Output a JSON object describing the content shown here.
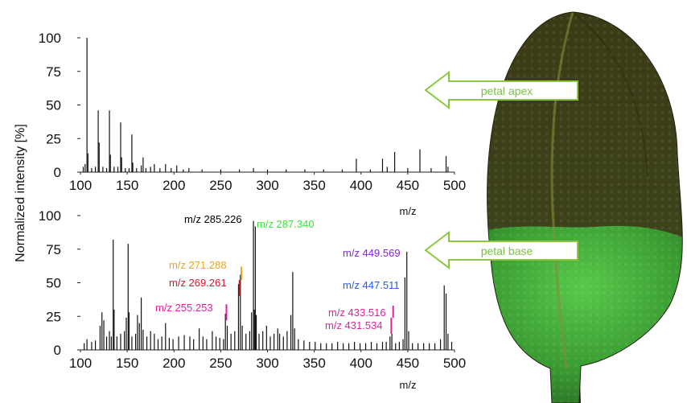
{
  "ylabel": "Normalized intensity [%]",
  "xlabel": "m/z",
  "arrows": {
    "apex": "petal apex",
    "base": "petal base"
  },
  "colors": {
    "spectrum": "#000000",
    "arrow_fill": "#ffffff",
    "arrow_stroke": "#8cc63f",
    "arrow_text": "#7ac043",
    "petal_dark": "#3a3d18",
    "petal_green": "#3fa532"
  },
  "chart_data": [
    {
      "type": "bar",
      "name": "petal apex spectrum",
      "xlim": [
        100,
        500
      ],
      "ylim": [
        0,
        100
      ],
      "xticks": [
        100,
        150,
        200,
        250,
        300,
        350,
        400,
        450,
        500
      ],
      "yticks": [
        0,
        25,
        50,
        75,
        100
      ],
      "xlabel": "m/z",
      "peaks": [
        {
          "x": 103,
          "y": 4
        },
        {
          "x": 105,
          "y": 6
        },
        {
          "x": 107,
          "y": 100
        },
        {
          "x": 108,
          "y": 14
        },
        {
          "x": 112,
          "y": 3
        },
        {
          "x": 116,
          "y": 4
        },
        {
          "x": 119,
          "y": 46
        },
        {
          "x": 120,
          "y": 22
        },
        {
          "x": 124,
          "y": 4
        },
        {
          "x": 128,
          "y": 3
        },
        {
          "x": 131,
          "y": 46
        },
        {
          "x": 132,
          "y": 13
        },
        {
          "x": 136,
          "y": 4
        },
        {
          "x": 140,
          "y": 4
        },
        {
          "x": 143,
          "y": 37
        },
        {
          "x": 144,
          "y": 11
        },
        {
          "x": 148,
          "y": 3
        },
        {
          "x": 152,
          "y": 3
        },
        {
          "x": 155,
          "y": 28
        },
        {
          "x": 156,
          "y": 7
        },
        {
          "x": 160,
          "y": 3
        },
        {
          "x": 165,
          "y": 5
        },
        {
          "x": 167,
          "y": 11
        },
        {
          "x": 170,
          "y": 3
        },
        {
          "x": 175,
          "y": 4
        },
        {
          "x": 179,
          "y": 6
        },
        {
          "x": 185,
          "y": 3
        },
        {
          "x": 191,
          "y": 6
        },
        {
          "x": 197,
          "y": 3
        },
        {
          "x": 203,
          "y": 5
        },
        {
          "x": 210,
          "y": 2
        },
        {
          "x": 216,
          "y": 3
        },
        {
          "x": 230,
          "y": 2
        },
        {
          "x": 250,
          "y": 2
        },
        {
          "x": 270,
          "y": 2
        },
        {
          "x": 285,
          "y": 3
        },
        {
          "x": 300,
          "y": 2
        },
        {
          "x": 320,
          "y": 2
        },
        {
          "x": 340,
          "y": 2
        },
        {
          "x": 360,
          "y": 2
        },
        {
          "x": 380,
          "y": 2
        },
        {
          "x": 395,
          "y": 10
        },
        {
          "x": 410,
          "y": 2
        },
        {
          "x": 423,
          "y": 10
        },
        {
          "x": 428,
          "y": 4
        },
        {
          "x": 436,
          "y": 15
        },
        {
          "x": 450,
          "y": 3
        },
        {
          "x": 463,
          "y": 17
        },
        {
          "x": 475,
          "y": 3
        },
        {
          "x": 491,
          "y": 12
        },
        {
          "x": 493,
          "y": 4
        }
      ]
    },
    {
      "type": "bar",
      "name": "petal base spectrum",
      "xlim": [
        100,
        500
      ],
      "ylim": [
        0,
        100
      ],
      "xticks": [
        100,
        150,
        200,
        250,
        300,
        350,
        400,
        450,
        500
      ],
      "yticks": [
        0,
        25,
        50,
        75,
        100
      ],
      "xlabel": "m/z",
      "peaks": [
        {
          "x": 104,
          "y": 5
        },
        {
          "x": 107,
          "y": 8
        },
        {
          "x": 112,
          "y": 6
        },
        {
          "x": 116,
          "y": 7
        },
        {
          "x": 121,
          "y": 18
        },
        {
          "x": 123,
          "y": 28
        },
        {
          "x": 125,
          "y": 22
        },
        {
          "x": 128,
          "y": 10
        },
        {
          "x": 131,
          "y": 14
        },
        {
          "x": 133,
          "y": 10
        },
        {
          "x": 135,
          "y": 82
        },
        {
          "x": 136,
          "y": 30
        },
        {
          "x": 139,
          "y": 10
        },
        {
          "x": 143,
          "y": 12
        },
        {
          "x": 147,
          "y": 14
        },
        {
          "x": 149,
          "y": 24
        },
        {
          "x": 151,
          "y": 79
        },
        {
          "x": 152,
          "y": 28
        },
        {
          "x": 155,
          "y": 10
        },
        {
          "x": 159,
          "y": 12
        },
        {
          "x": 161,
          "y": 26
        },
        {
          "x": 163,
          "y": 20
        },
        {
          "x": 165,
          "y": 39
        },
        {
          "x": 167,
          "y": 15
        },
        {
          "x": 171,
          "y": 10
        },
        {
          "x": 175,
          "y": 14
        },
        {
          "x": 179,
          "y": 12
        },
        {
          "x": 183,
          "y": 8
        },
        {
          "x": 187,
          "y": 10
        },
        {
          "x": 191,
          "y": 20
        },
        {
          "x": 195,
          "y": 9
        },
        {
          "x": 199,
          "y": 8
        },
        {
          "x": 205,
          "y": 10
        },
        {
          "x": 211,
          "y": 11
        },
        {
          "x": 217,
          "y": 10
        },
        {
          "x": 221,
          "y": 8
        },
        {
          "x": 227,
          "y": 16
        },
        {
          "x": 231,
          "y": 10
        },
        {
          "x": 235,
          "y": 8
        },
        {
          "x": 241,
          "y": 14
        },
        {
          "x": 245,
          "y": 10
        },
        {
          "x": 249,
          "y": 9
        },
        {
          "x": 253,
          "y": 8
        },
        {
          "x": 255,
          "y": 27
        },
        {
          "x": 257,
          "y": 18
        },
        {
          "x": 261,
          "y": 12
        },
        {
          "x": 265,
          "y": 14
        },
        {
          "x": 269,
          "y": 49
        },
        {
          "x": 271,
          "y": 56
        },
        {
          "x": 273,
          "y": 18
        },
        {
          "x": 277,
          "y": 12
        },
        {
          "x": 281,
          "y": 14
        },
        {
          "x": 283,
          "y": 28
        },
        {
          "x": 285,
          "y": 96
        },
        {
          "x": 286,
          "y": 30
        },
        {
          "x": 287,
          "y": 92
        },
        {
          "x": 288,
          "y": 26
        },
        {
          "x": 291,
          "y": 12
        },
        {
          "x": 295,
          "y": 14
        },
        {
          "x": 299,
          "y": 18
        },
        {
          "x": 303,
          "y": 10
        },
        {
          "x": 307,
          "y": 12
        },
        {
          "x": 311,
          "y": 16
        },
        {
          "x": 313,
          "y": 12
        },
        {
          "x": 317,
          "y": 10
        },
        {
          "x": 321,
          "y": 14
        },
        {
          "x": 325,
          "y": 26
        },
        {
          "x": 327,
          "y": 58
        },
        {
          "x": 329,
          "y": 16
        },
        {
          "x": 333,
          "y": 8
        },
        {
          "x": 339,
          "y": 7
        },
        {
          "x": 345,
          "y": 6
        },
        {
          "x": 351,
          "y": 6
        },
        {
          "x": 357,
          "y": 5
        },
        {
          "x": 363,
          "y": 5
        },
        {
          "x": 369,
          "y": 5
        },
        {
          "x": 375,
          "y": 6
        },
        {
          "x": 381,
          "y": 5
        },
        {
          "x": 387,
          "y": 5
        },
        {
          "x": 393,
          "y": 6
        },
        {
          "x": 399,
          "y": 5
        },
        {
          "x": 405,
          "y": 5
        },
        {
          "x": 411,
          "y": 6
        },
        {
          "x": 417,
          "y": 5
        },
        {
          "x": 423,
          "y": 6
        },
        {
          "x": 427,
          "y": 6
        },
        {
          "x": 431,
          "y": 10
        },
        {
          "x": 433,
          "y": 12
        },
        {
          "x": 437,
          "y": 5
        },
        {
          "x": 441,
          "y": 6
        },
        {
          "x": 445,
          "y": 8
        },
        {
          "x": 447,
          "y": 54
        },
        {
          "x": 449,
          "y": 73
        },
        {
          "x": 451,
          "y": 14
        },
        {
          "x": 455,
          "y": 5
        },
        {
          "x": 461,
          "y": 5
        },
        {
          "x": 467,
          "y": 5
        },
        {
          "x": 473,
          "y": 5
        },
        {
          "x": 479,
          "y": 5
        },
        {
          "x": 485,
          "y": 8
        },
        {
          "x": 489,
          "y": 48
        },
        {
          "x": 491,
          "y": 42
        },
        {
          "x": 493,
          "y": 12
        },
        {
          "x": 497,
          "y": 6
        }
      ],
      "annotations": [
        {
          "label": "m/z 285.226",
          "x": 285.226,
          "color": "#000000"
        },
        {
          "label": "m/z 287.340",
          "x": 287.34,
          "color": "#3ee03e"
        },
        {
          "label": "m/z 271.288",
          "x": 271.288,
          "color": "#f0a020",
          "marker_y": [
            52,
            62
          ]
        },
        {
          "label": "m/z 269.261",
          "x": 269.261,
          "color": "#e0102a",
          "marker_y": [
            40,
            52
          ]
        },
        {
          "label": "m/z 255.253",
          "x": 255.253,
          "color": "#e020a0",
          "marker_y": [
            22,
            34
          ]
        },
        {
          "label": "m/z 449.569",
          "x": 449.569,
          "color": "#8a20d8"
        },
        {
          "label": "m/z 447.511",
          "x": 447.511,
          "color": "#2060e0"
        },
        {
          "label": "m/z 433.516",
          "x": 433.516,
          "color": "#e020a0",
          "marker_y": [
            24,
            33
          ]
        },
        {
          "label": "m/z 431.534",
          "x": 431.534,
          "color": "#e020a0",
          "marker_y": [
            12,
            24
          ]
        }
      ]
    }
  ]
}
